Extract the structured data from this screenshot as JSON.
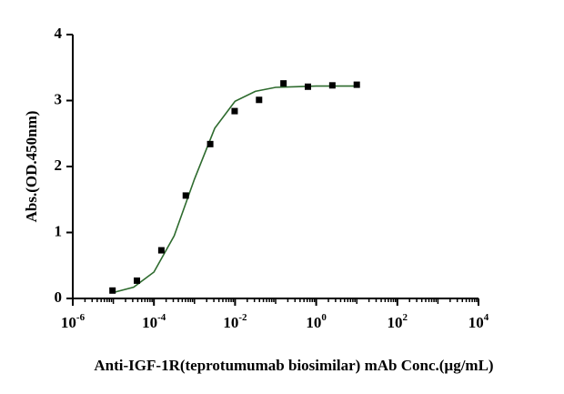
{
  "chart_data": {
    "type": "scatter",
    "x_label": "Anti-IGF-1R(teprotumumab biosimilar) mAb Conc.(µg/mL)",
    "y_label": "Abs.(OD.450nm)",
    "x_scale": "log",
    "xlim": [
      1e-06,
      10000
    ],
    "xticks": [
      {
        "value": 1e-06,
        "label": "10",
        "exponent": "-6"
      },
      {
        "value": 0.0001,
        "label": "10",
        "exponent": "-4"
      },
      {
        "value": 0.01,
        "label": "10",
        "exponent": "-2"
      },
      {
        "value": 1,
        "label": "10",
        "exponent": "0"
      },
      {
        "value": 100,
        "label": "10",
        "exponent": "2"
      },
      {
        "value": 10000,
        "label": "10",
        "exponent": "4"
      }
    ],
    "ylim": [
      0,
      4
    ],
    "yticks": [
      0,
      1,
      2,
      3,
      4
    ],
    "series": [
      {
        "type": "scatter",
        "color": "#000000",
        "x": [
          9.5367431640625e-06,
          3.814697265625e-05,
          0.000152587890625,
          0.0006103515625,
          0.00244140625,
          0.009765625,
          0.0390625,
          0.15625,
          0.625,
          2.5,
          10
        ],
        "values": [
          0.12,
          0.27,
          0.73,
          1.56,
          2.34,
          2.84,
          3.01,
          3.26,
          3.21,
          3.23,
          3.24
        ]
      },
      {
        "type": "line",
        "color": "#2e6b2e",
        "x": [
          1e-05,
          3.16e-05,
          0.0001,
          0.000316,
          0.001,
          0.00316,
          0.01,
          0.0316,
          0.1,
          0.316,
          1,
          3.16,
          10
        ],
        "values": [
          0.09,
          0.17,
          0.4,
          0.95,
          1.81,
          2.58,
          2.99,
          3.14,
          3.2,
          3.21,
          3.22,
          3.22,
          3.22
        ]
      }
    ]
  }
}
